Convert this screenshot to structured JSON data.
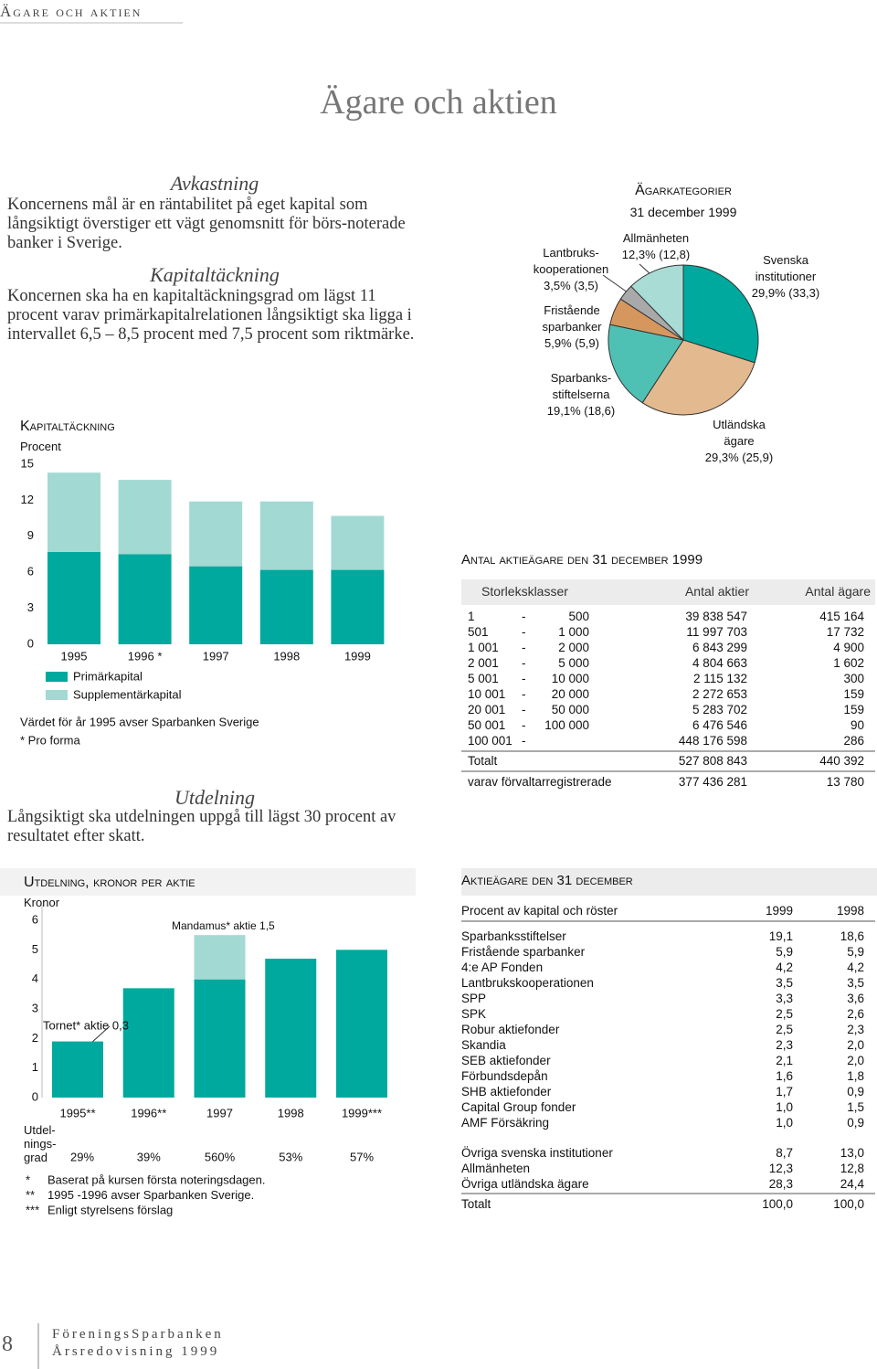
{
  "header": {
    "section": "Ägare och aktien",
    "title": "Ägare och aktien"
  },
  "sections": [
    {
      "heading": "Avkastning",
      "body": "Koncernens mål är en räntabilitet på eget kapital som långsiktigt överstiger ett vägt genomsnitt för börs-noterade banker i Sverige."
    },
    {
      "heading": "Kapitaltäckning",
      "body": "Koncernen ska ha en kapitaltäckningsgrad om lägst 11 procent varav primärkapitalrelationen långsiktigt ska ligga i intervallet 6,5 – 8,5 procent med 7,5 procent som riktmärke."
    },
    {
      "heading": "Utdelning",
      "body": "Långsiktigt ska utdelningen uppgå till lägst 30 procent av resultatet efter skatt."
    }
  ],
  "chart_data": [
    {
      "type": "bar",
      "stacked": true,
      "title": "Kapitaltäckning",
      "y_label": "Procent",
      "categories": [
        "1995",
        "1996 *",
        "1997",
        "1998",
        "1999"
      ],
      "series": [
        {
          "name": "Primärkapital",
          "color": "#00a99d",
          "values": [
            7.7,
            7.5,
            6.5,
            6.2,
            6.2
          ]
        },
        {
          "name": "Supplementärkapital",
          "color": "#a3d9d3",
          "values": [
            6.6,
            6.2,
            5.4,
            5.7,
            4.5
          ]
        }
      ],
      "ylim": [
        0,
        15
      ],
      "yticks": [
        0,
        3,
        6,
        9,
        12,
        15
      ],
      "notes": [
        "Värdet för år 1995 avser Sparbanken Sverige",
        "* Pro forma"
      ]
    },
    {
      "type": "pie",
      "title": "Ägarkategorier",
      "subtitle": "31 december 1999",
      "categories": [
        "Svenska\ninstitutioner",
        "Utländska\nägare",
        "Sparbanks-\nstiftelserna",
        "Fristående\nsparbanker",
        "Lantbruks-\nkooperationen",
        "Allmänheten"
      ],
      "values": [
        29.9,
        29.3,
        19.1,
        5.9,
        3.5,
        12.3
      ],
      "value_labels": [
        "29,9% (33,3)",
        "29,3% (25,9)",
        "19,1% (18,6)",
        "5,9% (5,9)",
        "3,5% (3,5)",
        "12,3% (12,8)"
      ],
      "colors": [
        "#00a99d",
        "#e3b98f",
        "#4fc1b4",
        "#d6975f",
        "#a9a9a9",
        "#a8dcd5"
      ]
    },
    {
      "type": "bar",
      "stacked": true,
      "title": "Utdelning, kronor per aktie",
      "y_label": "Kronor",
      "categories": [
        "1995**",
        "1996**",
        "1997",
        "1998",
        "1999***"
      ],
      "series": [
        {
          "color": "#00a99d",
          "values": [
            1.9,
            3.7,
            4.0,
            4.7,
            5.0
          ]
        },
        {
          "color": "#a3d9d3",
          "values": [
            null,
            null,
            1.5,
            null,
            null
          ]
        }
      ],
      "ylim": [
        0,
        6
      ],
      "yticks": [
        0,
        1,
        2,
        3,
        4,
        5,
        6
      ],
      "annotations": [
        "Tornet* aktie 0,3",
        "Mandamus* aktie 1,5"
      ],
      "payout_label": "Utdel-\nnings-\ngrad",
      "payout": [
        "29%",
        "39%",
        "560%",
        "53%",
        "57%"
      ],
      "notes": [
        [
          "*",
          "Baserat på kursen första noteringsdagen."
        ],
        [
          "**",
          "1995 -1996 avser Sparbanken Sverige."
        ],
        [
          "***",
          "Enligt styrelsens förslag"
        ]
      ]
    }
  ],
  "shareholders_table": {
    "title": "Antal aktieägare den 31 december 1999",
    "columns": [
      "Storleksklasser",
      "Antal aktier",
      "Antal ägare"
    ],
    "rows": [
      {
        "from": "1",
        "sep": "-",
        "to": "500",
        "shares": "39 838 547",
        "owners": "415 164"
      },
      {
        "from": "501",
        "sep": "-",
        "to": "1 000",
        "shares": "11 997 703",
        "owners": "17 732"
      },
      {
        "from": "1 001",
        "sep": "-",
        "to": "2 000",
        "shares": "6 843 299",
        "owners": "4 900"
      },
      {
        "from": "2 001",
        "sep": "-",
        "to": "5 000",
        "shares": "4 804 663",
        "owners": "1 602"
      },
      {
        "from": "5 001",
        "sep": "-",
        "to": "10 000",
        "shares": "2 115 132",
        "owners": "300"
      },
      {
        "from": "10 001",
        "sep": "-",
        "to": "20 000",
        "shares": "2 272 653",
        "owners": "159"
      },
      {
        "from": "20 001",
        "sep": "-",
        "to": "50 000",
        "shares": "5 283 702",
        "owners": "159"
      },
      {
        "from": "50 001",
        "sep": "-",
        "to": "100 000",
        "shares": "6 476 546",
        "owners": "90"
      },
      {
        "from": "100 001",
        "sep": "-",
        "shares": "448 176 598",
        "owners": "286"
      }
    ],
    "totals": [
      [
        "Totalt",
        "527 808 843",
        "440 392"
      ],
      [
        "varav förvaltarregistrerade",
        "377 436 281",
        "13 780"
      ]
    ]
  },
  "ownership_table": {
    "title": "Aktieägare den 31 december",
    "columns": [
      "Procent av kapital och röster",
      "1999",
      "1998"
    ],
    "rows": [
      [
        "Sparbanksstiftelser",
        "19,1",
        "18,6"
      ],
      [
        "Fristående sparbanker",
        "5,9",
        "5,9"
      ],
      [
        "4:e AP Fonden",
        "4,2",
        "4,2"
      ],
      [
        "Lantbrukskooperationen",
        "3,5",
        "3,5"
      ],
      [
        "SPP",
        "3,3",
        "3,6"
      ],
      [
        "SPK",
        "2,5",
        "2,6"
      ],
      [
        "Robur aktiefonder",
        "2,5",
        "2,3"
      ],
      [
        "Skandia",
        "2,3",
        "2,0"
      ],
      [
        "SEB aktiefonder",
        "2,1",
        "2,0"
      ],
      [
        "Förbundsdepån",
        "1,6",
        "1,8"
      ],
      [
        "SHB aktiefonder",
        "1,7",
        "0,9"
      ],
      [
        "Capital Group fonder",
        "1,0",
        "1,5"
      ],
      [
        "AMF Försäkring",
        "1,0",
        "0,9"
      ]
    ],
    "other_rows": [
      [
        "Övriga svenska institutioner",
        "8,7",
        "13,0"
      ],
      [
        "Allmänheten",
        "12,3",
        "12,8"
      ],
      [
        "Övriga utländska ägare",
        "28,3",
        "24,4"
      ]
    ],
    "total": [
      "Totalt",
      "100,0",
      "100,0"
    ]
  },
  "footer": {
    "page": "8",
    "company": "FöreningsSparbanken",
    "publication": "Årsredovisning 1999"
  }
}
